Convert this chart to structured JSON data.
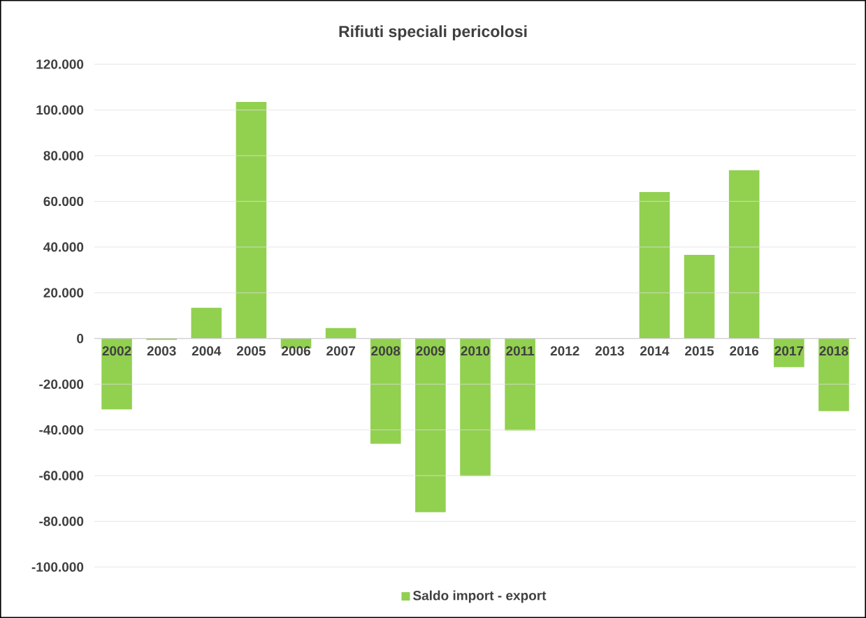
{
  "chart_data": {
    "type": "bar",
    "title": "Rifiuti speciali pericolosi",
    "categories": [
      "2002",
      "2003",
      "2004",
      "2005",
      "2006",
      "2007",
      "2008",
      "2009",
      "2010",
      "2011",
      "2012",
      "2013",
      "2014",
      "2015",
      "2016",
      "2017",
      "2018"
    ],
    "series": [
      {
        "name": "Saldo import - export",
        "color": "#92d050",
        "values": [
          -31000,
          -600,
          13400,
          103500,
          -4300,
          4600,
          -46100,
          -76000,
          -60200,
          -40300,
          null,
          null,
          64100,
          36600,
          73600,
          -12500,
          -31800
        ]
      }
    ],
    "ylim": [
      -100000,
      120000
    ],
    "yticks": [
      {
        "value": -100000,
        "label": "-100.000"
      },
      {
        "value": -80000,
        "label": "-80.000"
      },
      {
        "value": -60000,
        "label": "-60.000"
      },
      {
        "value": -40000,
        "label": "-40.000"
      },
      {
        "value": -20000,
        "label": "-20.000"
      },
      {
        "value": 0,
        "label": "0"
      },
      {
        "value": 20000,
        "label": "20.000"
      },
      {
        "value": 40000,
        "label": "40.000"
      },
      {
        "value": 60000,
        "label": "60.000"
      },
      {
        "value": 80000,
        "label": "80.000"
      },
      {
        "value": 100000,
        "label": "100.000"
      },
      {
        "value": 120000,
        "label": "120.000"
      }
    ],
    "grid": "y",
    "legend": "bottom"
  }
}
